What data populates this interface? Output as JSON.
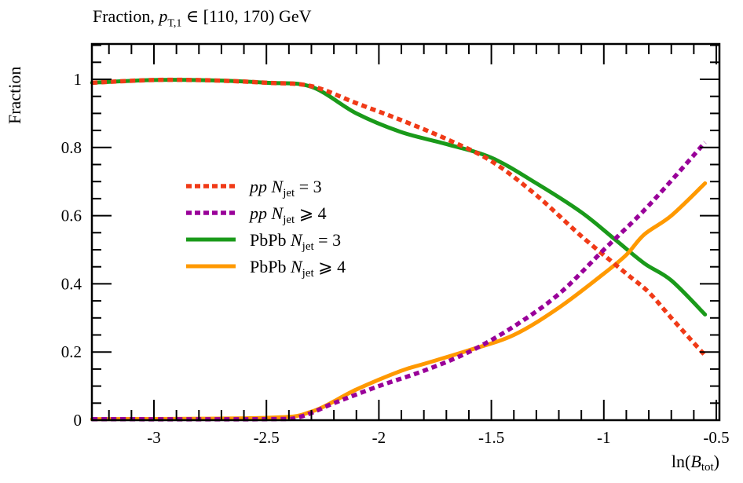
{
  "title": {
    "prefix": "Fraction, ",
    "var": "p",
    "var_sub": "T,1",
    "suffix": " ∈ [110, 170) GeV"
  },
  "axes": {
    "ylabel": "Fraction",
    "xlabel_fn": "ln(",
    "xlabel_var": "B",
    "xlabel_sub": "tot",
    "xlabel_close": ")"
  },
  "chart_data": {
    "type": "line",
    "title": "Fraction, p_T,1 ∈ [110, 170) GeV",
    "xlabel": "ln(B_tot)",
    "ylabel": "Fraction",
    "xlim": [
      -3.275,
      -0.48
    ],
    "ylim": [
      0,
      1.1
    ],
    "xticks": [
      -3,
      -2.5,
      -2,
      -1.5,
      -1,
      -0.5
    ],
    "xtick_labels": [
      "-3",
      "-2.5",
      "-2",
      "-1.5",
      "-1",
      "-0.5"
    ],
    "yticks": [
      0,
      0.2,
      0.4,
      0.6,
      0.8,
      1
    ],
    "ytick_labels": [
      "0",
      "0.2",
      "0.4",
      "0.6",
      "0.8",
      "1"
    ],
    "grid": false,
    "legend_position": "center-left",
    "series": [
      {
        "name": "pp N_jet = 3",
        "legend_prefix": "pp",
        "legend_rel": "= 3",
        "color": "#f03a17",
        "style": "dotted",
        "x": [
          -3.275,
          -3.0,
          -2.75,
          -2.5,
          -2.3,
          -2.1,
          -1.9,
          -1.7,
          -1.5,
          -1.3,
          -1.1,
          -0.9,
          -0.8,
          -0.7,
          -0.55
        ],
        "y": [
          0.99,
          0.998,
          0.997,
          0.99,
          0.98,
          0.93,
          0.88,
          0.825,
          0.76,
          0.66,
          0.54,
          0.43,
          0.375,
          0.3,
          0.19
        ]
      },
      {
        "name": "pp N_jet ≥ 4",
        "legend_prefix": "pp",
        "legend_rel": "⩾ 4",
        "color": "#990099",
        "style": "dotted",
        "x": [
          -3.275,
          -2.5,
          -2.35,
          -2.2,
          -2.0,
          -1.8,
          -1.6,
          -1.4,
          -1.2,
          -1.0,
          -0.8,
          -0.55
        ],
        "y": [
          0.003,
          0.003,
          0.01,
          0.05,
          0.1,
          0.145,
          0.2,
          0.275,
          0.37,
          0.5,
          0.63,
          0.815
        ]
      },
      {
        "name": "PbPb N_jet = 3",
        "legend_prefix": "PbPb",
        "legend_rel": "= 3",
        "color": "#1a9a1a",
        "style": "solid",
        "x": [
          -3.275,
          -3.0,
          -2.75,
          -2.5,
          -2.3,
          -2.1,
          -1.9,
          -1.7,
          -1.5,
          -1.3,
          -1.1,
          -0.95,
          -0.82,
          -0.7,
          -0.55
        ],
        "y": [
          0.99,
          0.998,
          0.997,
          0.99,
          0.978,
          0.9,
          0.845,
          0.81,
          0.77,
          0.695,
          0.61,
          0.53,
          0.46,
          0.41,
          0.31
        ]
      },
      {
        "name": "PbPb N_jet ≥ 4",
        "legend_prefix": "PbPb",
        "legend_rel": "⩾ 4",
        "color": "#ff9900",
        "style": "solid",
        "x": [
          -3.275,
          -2.5,
          -2.3,
          -2.1,
          -1.9,
          -1.8,
          -1.6,
          -1.4,
          -1.2,
          -1.0,
          -0.9,
          -0.82,
          -0.7,
          -0.55
        ],
        "y": [
          0.003,
          0.007,
          0.025,
          0.09,
          0.145,
          0.165,
          0.205,
          0.25,
          0.33,
          0.43,
          0.485,
          0.545,
          0.6,
          0.695
        ]
      }
    ]
  }
}
